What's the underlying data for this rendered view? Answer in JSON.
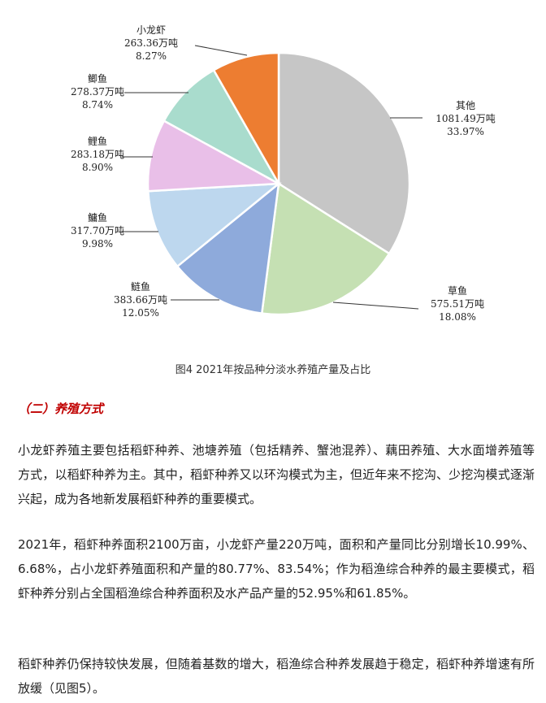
{
  "chart_data": {
    "type": "pie",
    "title": "",
    "slices": [
      {
        "name": "其他",
        "value": 1081.49,
        "value_label": "1081.49万吨",
        "percent_label": "33.97%",
        "color": "#c6c6c6"
      },
      {
        "name": "草鱼",
        "value": 575.51,
        "value_label": "575.51万吨",
        "percent_label": "18.08%",
        "color": "#c5e0b3"
      },
      {
        "name": "鲢鱼",
        "value": 383.66,
        "value_label": "383.66万吨",
        "percent_label": "12.05%",
        "color": "#8eaadb"
      },
      {
        "name": "鳙鱼",
        "value": 317.7,
        "value_label": "317.70万吨",
        "percent_label": "9.98%",
        "color": "#bdd7ee"
      },
      {
        "name": "鲤鱼",
        "value": 283.18,
        "value_label": "283.18万吨",
        "percent_label": "8.90%",
        "color": "#e9bfe8"
      },
      {
        "name": "鲫鱼",
        "value": 278.37,
        "value_label": "278.37万吨",
        "percent_label": "8.74%",
        "color": "#a9dccd"
      },
      {
        "name": "小龙虾",
        "value": 263.36,
        "value_label": "263.36万吨",
        "percent_label": "8.27%",
        "color": "#ed7d31"
      }
    ]
  },
  "caption": "图4 2021年按品种分淡水养殖产量及占比",
  "section_heading": "（二）养殖方式",
  "paragraphs": [
    "小龙虾养殖主要包括稻虾种养、池塘养殖（包括精养、蟹池混养）、藕田养殖、大水面增养殖等方式，以稻虾种养为主。其中，稻虾种养又以环沟模式为主，但近年来不挖沟、少挖沟模式逐渐兴起，成为各地新发展稻虾种养的重要模式。",
    "2021年，稻虾种养面积2100万亩，小龙虾产量220万吨，面积和产量同比分别增长10.99%、6.68%，占小龙虾养殖面积和产量的80.77%、83.54%；作为稻渔综合种养的最主要模式，稻虾种养分别占全国稻渔综合种养面积及水产品产量的52.95%和61.85%。",
    "稻虾种养仍保持较快发展，但随着基数的增大，稻渔综合种养发展趋于稳定，稻虾种养增速有所放缓（见图5）。"
  ]
}
